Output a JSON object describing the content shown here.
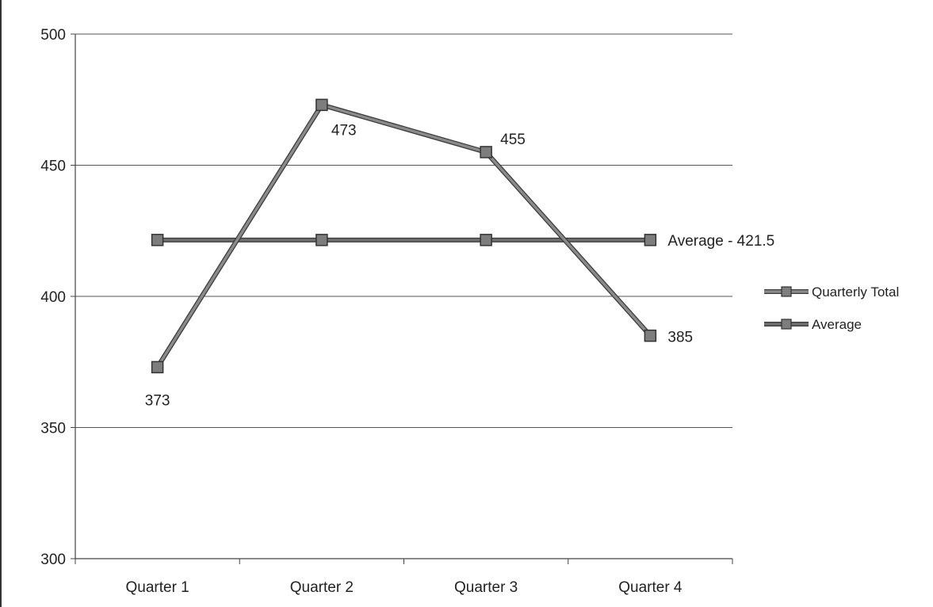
{
  "chart_data": {
    "type": "line",
    "categories": [
      "Quarter 1",
      "Quarter 2",
      "Quarter 3",
      "Quarter 4"
    ],
    "ylim": [
      300,
      500
    ],
    "yticks": [
      300,
      350,
      400,
      450,
      500
    ],
    "grid": true,
    "legend_position": "right",
    "series": [
      {
        "name": "Quarterly Total",
        "values": [
          373,
          473,
          455,
          385
        ],
        "data_labels": [
          "373",
          "473",
          "455",
          "385"
        ],
        "color": "#8a8a8a"
      },
      {
        "name": "Average",
        "values": [
          421.5,
          421.5,
          421.5,
          421.5
        ],
        "color": "#6e6e6e",
        "end_label": "Average - 421.5"
      }
    ]
  }
}
